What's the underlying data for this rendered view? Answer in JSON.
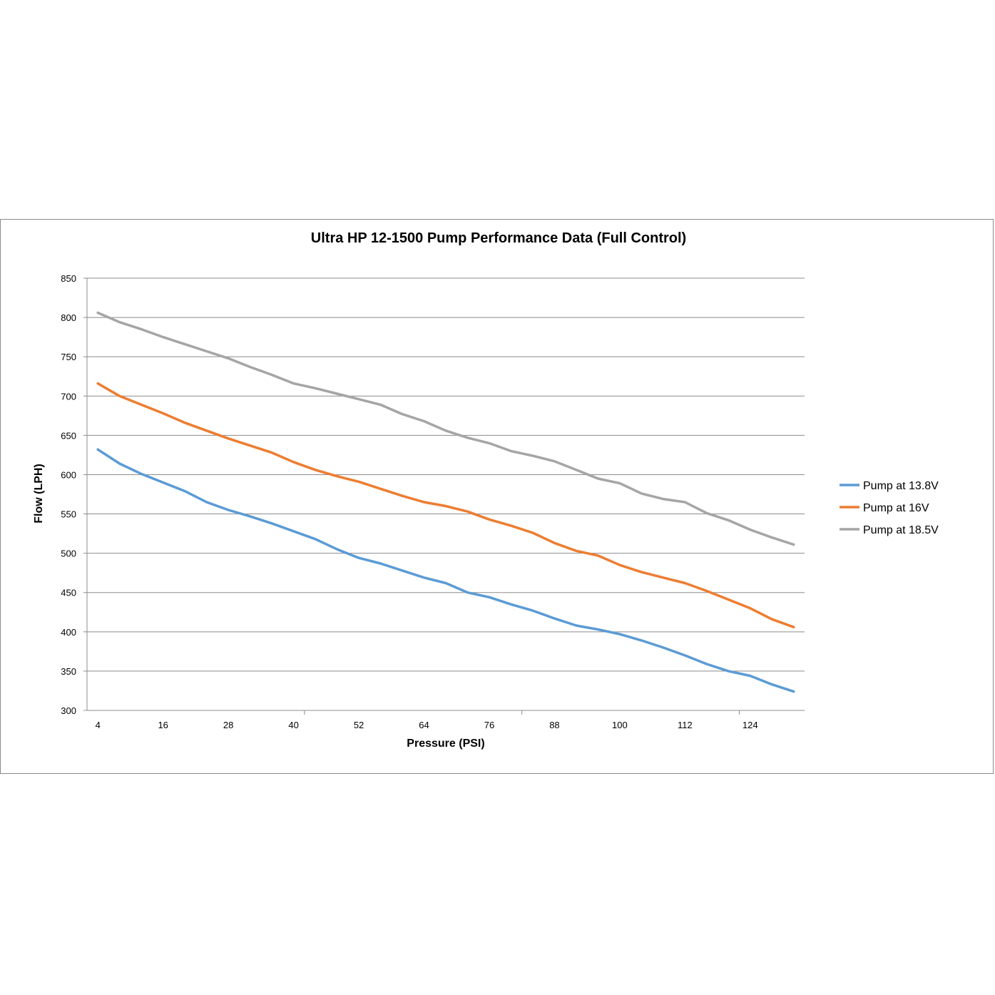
{
  "chart_data": {
    "type": "line",
    "title": "Ultra HP 12-1500 Pump Performance Data (Full Control)",
    "xlabel": "Pressure (PSI)",
    "ylabel": "Flow (LPH)",
    "x_tick_labels": [
      "4",
      "16",
      "28",
      "40",
      "52",
      "64",
      "76",
      "88",
      "100",
      "112",
      "124"
    ],
    "x": [
      4,
      8,
      12,
      16,
      20,
      24,
      28,
      32,
      36,
      40,
      44,
      48,
      52,
      56,
      60,
      64,
      68,
      72,
      76,
      80,
      84,
      88,
      92,
      96,
      100,
      104,
      108,
      112,
      116,
      120,
      124,
      128,
      132
    ],
    "xlim": [
      2,
      134
    ],
    "ylim": [
      300,
      850
    ],
    "y_ticks": [
      300,
      350,
      400,
      450,
      500,
      550,
      600,
      650,
      700,
      750,
      800,
      850
    ],
    "grid": true,
    "legend_position": "right",
    "series": [
      {
        "name": "Pump at 13.8V",
        "color": "#5b9bd5",
        "values": [
          632,
          614,
          601,
          590,
          579,
          565,
          555,
          547,
          538,
          528,
          518,
          505,
          494,
          487,
          478,
          469,
          462,
          450,
          444,
          435,
          427,
          417,
          408,
          403,
          397,
          389,
          380,
          370,
          359,
          350,
          344,
          333,
          324
        ]
      },
      {
        "name": "Pump at 16V",
        "color": "#ed7d31",
        "values": [
          716,
          700,
          689,
          678,
          666,
          656,
          646,
          637,
          628,
          616,
          606,
          598,
          591,
          582,
          573,
          565,
          560,
          553,
          543,
          535,
          526,
          513,
          503,
          497,
          485,
          476,
          469,
          462,
          452,
          441,
          430,
          416,
          406
        ]
      },
      {
        "name": "Pump at 18.5V",
        "color": "#a5a5a5",
        "values": [
          806,
          794,
          785,
          775,
          766,
          757,
          748,
          737,
          727,
          716,
          710,
          703,
          696,
          689,
          677,
          668,
          656,
          647,
          640,
          630,
          624,
          617,
          606,
          595,
          589,
          576,
          569,
          565,
          551,
          542,
          530,
          520,
          511
        ]
      }
    ]
  }
}
